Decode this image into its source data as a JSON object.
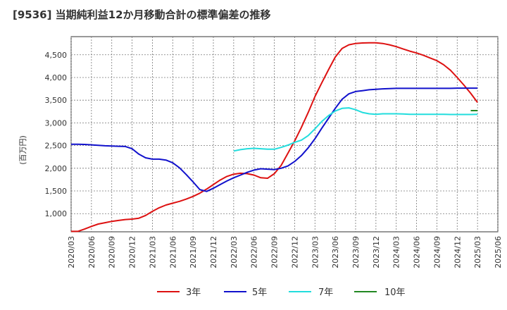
{
  "chart_data": {
    "type": "line",
    "title": "[9536]  当期純利益12か月移動合計の標準偏差の推移",
    "ylabel": "(百万円)",
    "ylim": [
      600,
      4900
    ],
    "yticks": [
      1000,
      1500,
      2000,
      2500,
      3000,
      3500,
      4000,
      4500
    ],
    "ytick_labels": [
      "1,000",
      "1,500",
      "2,000",
      "2,500",
      "3,000",
      "3,500",
      "4,000",
      "4,500"
    ],
    "xlim": [
      "2020/03",
      "2025/06"
    ],
    "x_tick_labels": [
      "2020/03",
      "2020/06",
      "2020/09",
      "2020/12",
      "2021/03",
      "2021/06",
      "2021/09",
      "2021/12",
      "2022/03",
      "2022/06",
      "2022/09",
      "2022/12",
      "2023/03",
      "2023/06",
      "2023/09",
      "2023/12",
      "2024/03",
      "2024/06",
      "2024/09",
      "2024/12",
      "2025/03",
      "2025/06"
    ],
    "grid": true,
    "legend_position": "bottom",
    "series": [
      {
        "name": "3年",
        "color": "#dd1111",
        "points": [
          [
            "2020/03",
            610
          ],
          [
            "2020/04",
            610
          ],
          [
            "2020/05",
            660
          ],
          [
            "2020/06",
            720
          ],
          [
            "2020/07",
            770
          ],
          [
            "2020/08",
            800
          ],
          [
            "2020/09",
            830
          ],
          [
            "2020/10",
            850
          ],
          [
            "2020/11",
            870
          ],
          [
            "2020/12",
            880
          ],
          [
            "2021/01",
            900
          ],
          [
            "2021/02",
            960
          ],
          [
            "2021/03",
            1050
          ],
          [
            "2021/04",
            1130
          ],
          [
            "2021/05",
            1190
          ],
          [
            "2021/06",
            1230
          ],
          [
            "2021/07",
            1270
          ],
          [
            "2021/08",
            1320
          ],
          [
            "2021/09",
            1380
          ],
          [
            "2021/10",
            1450
          ],
          [
            "2021/11",
            1540
          ],
          [
            "2021/12",
            1640
          ],
          [
            "2022/01",
            1740
          ],
          [
            "2022/02",
            1820
          ],
          [
            "2022/03",
            1870
          ],
          [
            "2022/04",
            1890
          ],
          [
            "2022/05",
            1880
          ],
          [
            "2022/06",
            1850
          ],
          [
            "2022/07",
            1790
          ],
          [
            "2022/08",
            1780
          ],
          [
            "2022/09",
            1880
          ],
          [
            "2022/10",
            2060
          ],
          [
            "2022/11",
            2330
          ],
          [
            "2022/12",
            2600
          ],
          [
            "2023/01",
            2900
          ],
          [
            "2023/02",
            3230
          ],
          [
            "2023/03",
            3580
          ],
          [
            "2023/04",
            3880
          ],
          [
            "2023/05",
            4170
          ],
          [
            "2023/06",
            4450
          ],
          [
            "2023/07",
            4640
          ],
          [
            "2023/08",
            4720
          ],
          [
            "2023/09",
            4750
          ],
          [
            "2023/10",
            4760
          ],
          [
            "2023/11",
            4765
          ],
          [
            "2023/12",
            4765
          ],
          [
            "2024/01",
            4750
          ],
          [
            "2024/02",
            4720
          ],
          [
            "2024/03",
            4680
          ],
          [
            "2024/04",
            4630
          ],
          [
            "2024/05",
            4580
          ],
          [
            "2024/06",
            4540
          ],
          [
            "2024/07",
            4490
          ],
          [
            "2024/08",
            4430
          ],
          [
            "2024/09",
            4370
          ],
          [
            "2024/10",
            4280
          ],
          [
            "2024/11",
            4160
          ],
          [
            "2024/12",
            4000
          ],
          [
            "2025/01",
            3830
          ],
          [
            "2025/02",
            3650
          ],
          [
            "2025/03",
            3450
          ]
        ]
      },
      {
        "name": "5年",
        "color": "#1111cc",
        "points": [
          [
            "2020/03",
            2530
          ],
          [
            "2020/04",
            2530
          ],
          [
            "2020/05",
            2525
          ],
          [
            "2020/06",
            2515
          ],
          [
            "2020/07",
            2505
          ],
          [
            "2020/08",
            2495
          ],
          [
            "2020/09",
            2490
          ],
          [
            "2020/10",
            2485
          ],
          [
            "2020/11",
            2480
          ],
          [
            "2020/12",
            2430
          ],
          [
            "2021/01",
            2310
          ],
          [
            "2021/02",
            2230
          ],
          [
            "2021/03",
            2200
          ],
          [
            "2021/04",
            2200
          ],
          [
            "2021/05",
            2180
          ],
          [
            "2021/06",
            2120
          ],
          [
            "2021/07",
            2010
          ],
          [
            "2021/08",
            1860
          ],
          [
            "2021/09",
            1700
          ],
          [
            "2021/10",
            1530
          ],
          [
            "2021/11",
            1490
          ],
          [
            "2021/12",
            1560
          ],
          [
            "2022/01",
            1640
          ],
          [
            "2022/02",
            1720
          ],
          [
            "2022/03",
            1790
          ],
          [
            "2022/04",
            1850
          ],
          [
            "2022/05",
            1910
          ],
          [
            "2022/06",
            1960
          ],
          [
            "2022/07",
            1990
          ],
          [
            "2022/08",
            1980
          ],
          [
            "2022/09",
            1970
          ],
          [
            "2022/10",
            2000
          ],
          [
            "2022/11",
            2050
          ],
          [
            "2022/12",
            2150
          ],
          [
            "2023/01",
            2280
          ],
          [
            "2023/02",
            2450
          ],
          [
            "2023/03",
            2650
          ],
          [
            "2023/04",
            2880
          ],
          [
            "2023/05",
            3100
          ],
          [
            "2023/06",
            3320
          ],
          [
            "2023/07",
            3520
          ],
          [
            "2023/08",
            3640
          ],
          [
            "2023/09",
            3690
          ],
          [
            "2023/10",
            3710
          ],
          [
            "2023/11",
            3730
          ],
          [
            "2023/12",
            3740
          ],
          [
            "2024/01",
            3750
          ],
          [
            "2024/02",
            3755
          ],
          [
            "2024/03",
            3760
          ],
          [
            "2024/04",
            3760
          ],
          [
            "2024/05",
            3760
          ],
          [
            "2024/06",
            3760
          ],
          [
            "2024/07",
            3760
          ],
          [
            "2024/08",
            3760
          ],
          [
            "2024/09",
            3760
          ],
          [
            "2024/10",
            3760
          ],
          [
            "2024/11",
            3760
          ],
          [
            "2024/12",
            3765
          ],
          [
            "2025/01",
            3765
          ],
          [
            "2025/02",
            3765
          ],
          [
            "2025/03",
            3765
          ]
        ]
      },
      {
        "name": "7年",
        "color": "#22dddd",
        "points": [
          [
            "2022/03",
            2380
          ],
          [
            "2022/04",
            2410
          ],
          [
            "2022/05",
            2430
          ],
          [
            "2022/06",
            2440
          ],
          [
            "2022/07",
            2430
          ],
          [
            "2022/08",
            2420
          ],
          [
            "2022/09",
            2420
          ],
          [
            "2022/10",
            2460
          ],
          [
            "2022/11",
            2510
          ],
          [
            "2022/12",
            2570
          ],
          [
            "2023/01",
            2620
          ],
          [
            "2023/02",
            2720
          ],
          [
            "2023/03",
            2870
          ],
          [
            "2023/04",
            3030
          ],
          [
            "2023/05",
            3160
          ],
          [
            "2023/06",
            3260
          ],
          [
            "2023/07",
            3320
          ],
          [
            "2023/08",
            3330
          ],
          [
            "2023/09",
            3290
          ],
          [
            "2023/10",
            3230
          ],
          [
            "2023/11",
            3200
          ],
          [
            "2023/12",
            3190
          ],
          [
            "2024/01",
            3200
          ],
          [
            "2024/02",
            3200
          ],
          [
            "2024/03",
            3200
          ],
          [
            "2024/04",
            3195
          ],
          [
            "2024/05",
            3190
          ],
          [
            "2024/06",
            3190
          ],
          [
            "2024/07",
            3190
          ],
          [
            "2024/08",
            3190
          ],
          [
            "2024/09",
            3190
          ],
          [
            "2024/10",
            3190
          ],
          [
            "2024/11",
            3185
          ],
          [
            "2024/12",
            3185
          ],
          [
            "2025/01",
            3185
          ],
          [
            "2025/02",
            3185
          ],
          [
            "2025/03",
            3190
          ]
        ]
      },
      {
        "name": "10年",
        "color": "#228822",
        "points": [
          [
            "2025/02",
            3270
          ],
          [
            "2025/03",
            3270
          ]
        ]
      }
    ]
  }
}
